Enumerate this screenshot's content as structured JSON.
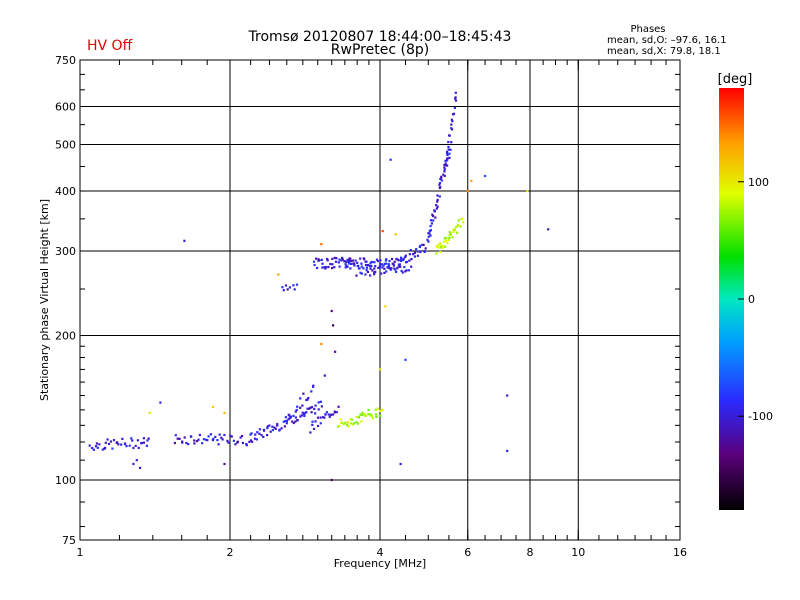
{
  "header": {
    "title_line1": "Tromsø 20120807 18:44:00–18:45:43",
    "title_line2": "RwPretec (8p)",
    "status": "HV Off",
    "status_color": "#e00000",
    "phases_title": "Phases",
    "phases_line1": "mean, sd,O: –97.6, 16.1",
    "phases_line2": "mean, sd,X:  79.8, 18.1"
  },
  "chart_data": {
    "type": "scatter",
    "title": "Tromsø 20120807 18:44:00–18:45:43",
    "xlabel": "Frequency [MHz]",
    "ylabel": "Stationary phase Virtual Height [km]",
    "xscale": "log",
    "yscale": "log",
    "xlim": [
      1,
      16
    ],
    "ylim": [
      75,
      750
    ],
    "x_ticks": [
      1,
      2,
      4,
      6,
      8,
      10,
      16
    ],
    "x_tick_labels": [
      "1",
      "2",
      "4",
      "6",
      "8",
      "10",
      "16"
    ],
    "y_ticks": [
      75,
      100,
      200,
      300,
      400,
      500,
      600,
      750
    ],
    "y_tick_labels": [
      "75",
      "100",
      "200",
      "300",
      "400",
      "500",
      "600",
      "750"
    ],
    "x_gridlines": [
      2,
      4,
      6,
      8,
      10
    ],
    "y_gridlines": [
      100,
      200,
      300,
      400,
      500,
      600
    ],
    "colorbar": {
      "label": "[deg]",
      "range": [
        -180,
        180
      ],
      "ticks": [
        100,
        0,
        -100
      ],
      "tick_labels": [
        "100",
        "0",
        "-100"
      ]
    },
    "series": [
      {
        "name": "O-mode",
        "phase": -97.6,
        "traces": [
          {
            "f_start": 1.05,
            "f_end": 1.38,
            "h_start": 118,
            "h_end": 120,
            "count": 38
          },
          {
            "f_start": 1.55,
            "f_end": 2.2,
            "h_start": 122,
            "h_end": 121,
            "count": 46
          },
          {
            "f_start": 2.2,
            "f_end": 3.05,
            "h_start": 122,
            "h_end": 143,
            "count": 60
          },
          {
            "f_start": 2.6,
            "f_end": 2.95,
            "h_start": 135,
            "h_end": 155,
            "count": 18
          },
          {
            "f_start": 2.9,
            "f_end": 3.3,
            "h_start": 128,
            "h_end": 142,
            "count": 22
          },
          {
            "f_start": 2.55,
            "f_end": 2.72,
            "h_start": 248,
            "h_end": 252,
            "count": 8
          },
          {
            "f_start": 2.95,
            "f_end": 3.5,
            "h_start": 282,
            "h_end": 285,
            "count": 38
          },
          {
            "f_start": 3.4,
            "f_end": 4.4,
            "h_start": 283,
            "h_end": 282,
            "count": 60
          },
          {
            "f_start": 3.6,
            "f_end": 4.6,
            "h_start": 272,
            "h_end": 278,
            "count": 40
          },
          {
            "f_start": 4.4,
            "f_end": 5.0,
            "h_start": 285,
            "h_end": 310,
            "count": 28
          },
          {
            "f_start": 5.0,
            "f_end": 5.55,
            "h_start": 320,
            "h_end": 500,
            "count": 46
          },
          {
            "f_start": 5.4,
            "f_end": 5.7,
            "h_start": 450,
            "h_end": 640,
            "count": 22
          }
        ]
      },
      {
        "name": "X-mode",
        "phase": 79.8,
        "traces": [
          {
            "f_start": 3.3,
            "f_end": 4.05,
            "h_start": 130,
            "h_end": 140,
            "count": 40
          },
          {
            "f_start": 5.2,
            "f_end": 5.85,
            "h_start": 300,
            "h_end": 345,
            "count": 40
          }
        ]
      }
    ],
    "scattered_points": [
      {
        "f": 1.62,
        "h": 315,
        "phase": -110
      },
      {
        "f": 6.5,
        "h": 430,
        "phase": -70
      },
      {
        "f": 8.7,
        "h": 333,
        "phase": -110
      },
      {
        "f": 7.2,
        "h": 150,
        "phase": -95
      },
      {
        "f": 7.2,
        "h": 115,
        "phase": -90
      },
      {
        "f": 4.2,
        "h": 465,
        "phase": -90
      },
      {
        "f": 4.5,
        "h": 178,
        "phase": -80
      },
      {
        "f": 4.4,
        "h": 108,
        "phase": -100
      },
      {
        "f": 3.2,
        "h": 225,
        "phase": -130
      },
      {
        "f": 3.22,
        "h": 210,
        "phase": -150
      },
      {
        "f": 3.25,
        "h": 185,
        "phase": -120
      },
      {
        "f": 3.1,
        "h": 165,
        "phase": -110
      },
      {
        "f": 3.2,
        "h": 100,
        "phase": -140
      },
      {
        "f": 1.3,
        "h": 110,
        "phase": -100
      },
      {
        "f": 1.32,
        "h": 106,
        "phase": -110
      },
      {
        "f": 1.45,
        "h": 145,
        "phase": -95
      },
      {
        "f": 1.28,
        "h": 108,
        "phase": -105
      },
      {
        "f": 1.95,
        "h": 108,
        "phase": -120
      },
      {
        "f": 1.95,
        "h": 138,
        "phase": 120
      },
      {
        "f": 1.85,
        "h": 142,
        "phase": 110
      },
      {
        "f": 1.38,
        "h": 138,
        "phase": 100
      },
      {
        "f": 2.5,
        "h": 268,
        "phase": 130
      },
      {
        "f": 3.05,
        "h": 310,
        "phase": 150
      },
      {
        "f": 3.05,
        "h": 192,
        "phase": 140
      },
      {
        "f": 6.1,
        "h": 420,
        "phase": 130
      },
      {
        "f": 7.9,
        "h": 400,
        "phase": 100
      },
      {
        "f": 4.1,
        "h": 230,
        "phase": 110
      },
      {
        "f": 4.0,
        "h": 170,
        "phase": 100
      },
      {
        "f": 4.05,
        "h": 330,
        "phase": 160
      },
      {
        "f": 4.3,
        "h": 325,
        "phase": 120
      },
      {
        "f": 6.0,
        "h": 400,
        "phase": 140
      }
    ]
  }
}
